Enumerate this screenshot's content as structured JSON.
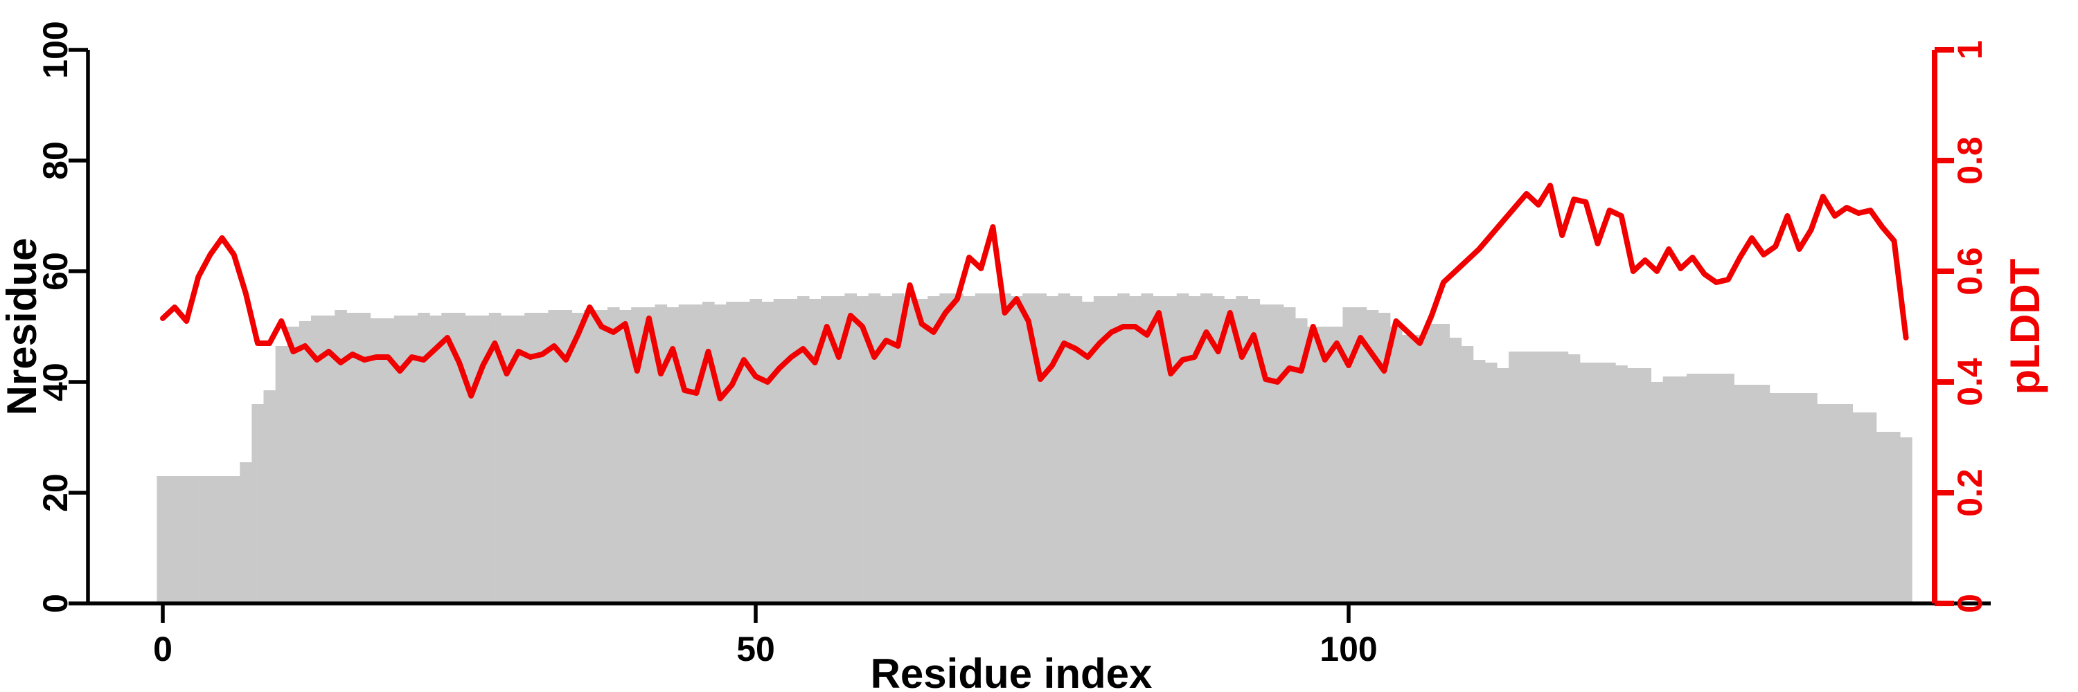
{
  "page": {
    "background": "#ffffff",
    "description": "Per-residue plot of Nresidue histogram (gray bars, left axis) and pLDDT line (red, right axis) versus residue index"
  },
  "chart_data": {
    "type": "bar+line",
    "title": "",
    "xlabel": "Residue index",
    "grid": false,
    "legend": "none",
    "axes": {
      "x": {
        "label": "Residue index",
        "ticks": [
          0,
          50,
          100
        ],
        "range": [
          -3,
          155
        ],
        "color": "#000000"
      },
      "y_left": {
        "label": "Nresidue",
        "ticks": [
          0,
          20,
          40,
          60,
          80,
          100
        ],
        "range": [
          0,
          100
        ],
        "color": "#000000",
        "tick_label_rotation_deg": -90
      },
      "y_right": {
        "label": "pLDDT",
        "ticks": [
          0,
          0.2,
          0.4,
          0.6,
          0.8,
          1
        ],
        "range": [
          0,
          1
        ],
        "color": "#f10000",
        "tick_label_rotation_deg": -90
      }
    },
    "series": [
      {
        "name": "Nresidue",
        "type": "bar",
        "axis": "left",
        "color": "#c9c9c9",
        "x_start_index": 0,
        "values": [
          23,
          23,
          23,
          23,
          23,
          23,
          23,
          25.5,
          36,
          38.5,
          46.5,
          50,
          51,
          52,
          52,
          53,
          52.5,
          52.5,
          51.5,
          51.5,
          52,
          52,
          52.5,
          52,
          52.5,
          52.5,
          52,
          52,
          52.5,
          52,
          52,
          52.5,
          52.5,
          53,
          53,
          52.5,
          53,
          53,
          53.5,
          53,
          53.5,
          53.5,
          54,
          53.5,
          54,
          54,
          54.5,
          54,
          54.5,
          54.5,
          55,
          54.5,
          55,
          55,
          55.5,
          55,
          55.5,
          55.5,
          56,
          55.5,
          56,
          55.5,
          56,
          55.5,
          55,
          55.5,
          56,
          56,
          55.5,
          56,
          56,
          56,
          55.5,
          56,
          56,
          55.5,
          56,
          55.5,
          54.5,
          55.5,
          55.5,
          56,
          55.5,
          56,
          55.5,
          55.5,
          56,
          55.5,
          56,
          55.5,
          55,
          55.5,
          55,
          54,
          54,
          53.5,
          51.5,
          50,
          50,
          50,
          53.5,
          53.5,
          53,
          52.5,
          50,
          48.5,
          48.5,
          50.5,
          50.5,
          48,
          46.5,
          44,
          43.5,
          42.5,
          45.5,
          45.5,
          45.5,
          45.5,
          45.5,
          45,
          43.5,
          43.5,
          43.5,
          43,
          42.5,
          42.5,
          40,
          41,
          41,
          41.5,
          41.5,
          41.5,
          41.5,
          39.5,
          39.5,
          39.5,
          38,
          38,
          38,
          38,
          36,
          36,
          36,
          34.5,
          34.5,
          31,
          31,
          30
        ]
      },
      {
        "name": "pLDDT",
        "type": "line",
        "axis": "right",
        "color": "#f10000",
        "stroke_width": 4,
        "x_start_index": 0,
        "values": [
          0.515,
          0.535,
          0.51,
          0.59,
          0.63,
          0.66,
          0.63,
          0.56,
          0.47,
          0.47,
          0.51,
          0.455,
          0.465,
          0.44,
          0.455,
          0.435,
          0.45,
          0.44,
          0.445,
          0.445,
          0.42,
          0.445,
          0.44,
          0.46,
          0.48,
          0.435,
          0.375,
          0.43,
          0.47,
          0.415,
          0.455,
          0.445,
          0.45,
          0.465,
          0.44,
          0.485,
          0.535,
          0.5,
          0.49,
          0.505,
          0.42,
          0.515,
          0.415,
          0.46,
          0.385,
          0.38,
          0.455,
          0.37,
          0.395,
          0.44,
          0.41,
          0.4,
          0.425,
          0.445,
          0.46,
          0.435,
          0.5,
          0.445,
          0.52,
          0.5,
          0.445,
          0.475,
          0.465,
          0.575,
          0.505,
          0.49,
          0.525,
          0.55,
          0.625,
          0.605,
          0.68,
          0.525,
          0.55,
          0.51,
          0.405,
          0.43,
          0.47,
          0.46,
          0.445,
          0.47,
          0.49,
          0.5,
          0.5,
          0.485,
          0.525,
          0.415,
          0.44,
          0.445,
          0.49,
          0.455,
          0.525,
          0.445,
          0.485,
          0.405,
          0.4,
          0.425,
          0.42,
          0.5,
          0.44,
          0.47,
          0.43,
          0.48,
          0.45,
          0.42,
          0.51,
          0.49,
          0.47,
          0.52,
          0.58,
          0.6,
          0.62,
          0.64,
          0.665,
          0.69,
          0.715,
          0.74,
          0.72,
          0.755,
          0.665,
          0.73,
          0.725,
          0.65,
          0.71,
          0.7,
          0.6,
          0.62,
          0.6,
          0.64,
          0.605,
          0.625,
          0.595,
          0.58,
          0.585,
          0.625,
          0.66,
          0.63,
          0.645,
          0.7,
          0.64,
          0.675,
          0.735,
          0.7,
          0.715,
          0.705,
          0.71,
          0.68,
          0.655,
          0.48
        ]
      }
    ]
  }
}
